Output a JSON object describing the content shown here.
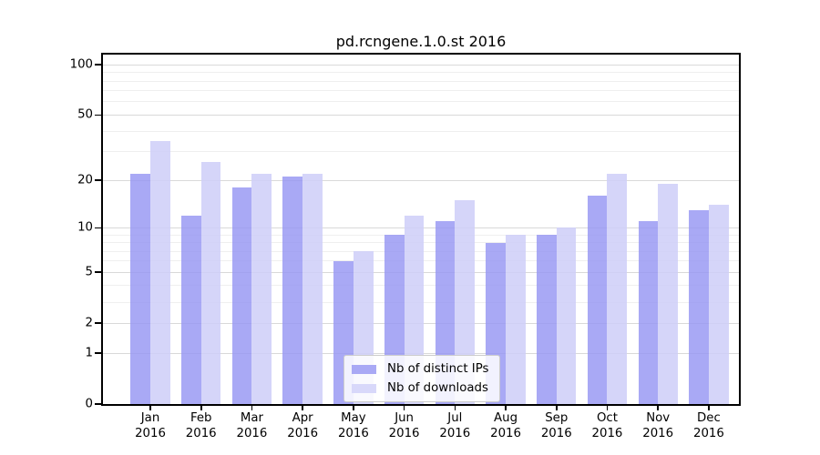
{
  "chart_data": {
    "type": "bar",
    "title": "pd.rcngene.1.0.st 2016",
    "year": "2016",
    "months": [
      "Jan",
      "Feb",
      "Mar",
      "Apr",
      "May",
      "Jun",
      "Jul",
      "Aug",
      "Sep",
      "Oct",
      "Nov",
      "Dec"
    ],
    "series": [
      {
        "name": "Nb of distinct IPs",
        "bar_color": "rgba(148,148,243,0.8)",
        "legend_color": "#a9a9f5",
        "values": [
          22,
          12,
          18,
          21,
          6,
          9,
          11,
          8,
          9,
          16,
          11,
          13
        ]
      },
      {
        "name": "Nb of downloads",
        "bar_color": "rgba(206,206,248,0.85)",
        "legend_color": "#d8d8fa",
        "values": [
          35,
          26,
          22,
          22,
          7,
          12,
          15,
          9,
          10,
          22,
          19,
          14
        ]
      }
    ],
    "y_axis": {
      "scale": "log1p",
      "tick_labels": [
        100,
        50,
        20,
        10,
        5,
        2,
        1,
        0
      ],
      "major_gridlines": [
        1,
        2,
        5,
        10,
        20,
        50,
        100
      ],
      "minor_gridlines": [
        3,
        4,
        6,
        7,
        8,
        9,
        30,
        40,
        60,
        70,
        80,
        90
      ]
    },
    "legend_position": "lower center",
    "grid": true,
    "colors": {
      "major_grid": "#d9d9d9",
      "minor_grid": "#efefef",
      "axis_frame": "#000000",
      "background": "#ffffff"
    }
  }
}
